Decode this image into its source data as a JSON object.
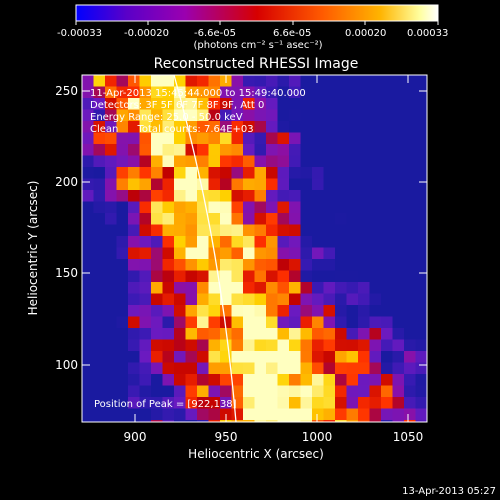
{
  "colorbar": {
    "tick_labels": [
      "-0.00033",
      "-0.00020",
      "-6.6e-05",
      "6.6e-05",
      "0.00020",
      "0.00033"
    ],
    "unit_label": "(photons cm⁻² s⁻¹ asec⁻²)",
    "colors": [
      "#0000ff",
      "#5a00c8",
      "#9a00b0",
      "#d70000",
      "#ff5a00",
      "#ffb400",
      "#ffffa0",
      "#ffffff"
    ]
  },
  "title": "Reconstructed RHESSI Image",
  "annotations": {
    "time_range": "11-Apr-2013 15:45:44.000 to 15:49:40.000",
    "detectors": "Detectors: 3F 5F 6F 7F 8F 9F, Att 0",
    "energy": "Energy Range: 25.0 - 50.0 keV",
    "method": "Clean      Total counts: 7.64E+03",
    "peak": "Position of Peak = [922,138]"
  },
  "x_axis": {
    "label": "Heliocentric X (arcsec)",
    "ticks": [
      "900",
      "950",
      "1000",
      "1050"
    ],
    "range": [
      866,
      1060
    ]
  },
  "y_axis": {
    "label": "Heliocentric Y (arcsec)",
    "ticks": [
      "100",
      "150",
      "200",
      "250"
    ],
    "range": [
      68,
      262
    ]
  },
  "footer_date": "13-Apr-2013 05:27"
}
